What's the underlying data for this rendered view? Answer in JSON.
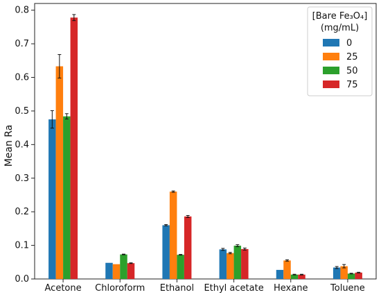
{
  "chart_data": {
    "type": "bar",
    "title": "",
    "xlabel": "",
    "ylabel": "Mean Ra",
    "ylim": [
      0,
      0.82
    ],
    "yticks": [
      0.0,
      0.1,
      0.2,
      0.3,
      0.4,
      0.5,
      0.6,
      0.7,
      0.8
    ],
    "categories": [
      "Acetone",
      "Chloroform",
      "Ethanol",
      "Ethyl acetate",
      "Hexane",
      "Toluene"
    ],
    "legend": {
      "title_line1": "[Bare Fe₃O₄]",
      "title_line2": "(mg/mL)",
      "placement": "top-right"
    },
    "grid": false,
    "series": [
      {
        "name": "0",
        "color": "#1f77b4",
        "values": [
          0.475,
          0.048,
          0.16,
          0.088,
          0.027,
          0.034
        ],
        "errors": [
          0.026,
          0.0,
          0.002,
          0.003,
          0.0,
          0.003
        ]
      },
      {
        "name": "25",
        "color": "#ff7f0e",
        "values": [
          0.633,
          0.044,
          0.26,
          0.077,
          0.055,
          0.038
        ],
        "errors": [
          0.035,
          0.0,
          0.002,
          0.002,
          0.002,
          0.005
        ]
      },
      {
        "name": "50",
        "color": "#2ca02c",
        "values": [
          0.484,
          0.073,
          0.072,
          0.099,
          0.013,
          0.016
        ],
        "errors": [
          0.008,
          0.001,
          0.001,
          0.003,
          0.001,
          0.001
        ]
      },
      {
        "name": "75",
        "color": "#d62728",
        "values": [
          0.778,
          0.047,
          0.186,
          0.089,
          0.013,
          0.019
        ],
        "errors": [
          0.009,
          0.001,
          0.003,
          0.003,
          0.001,
          0.001
        ]
      }
    ]
  }
}
